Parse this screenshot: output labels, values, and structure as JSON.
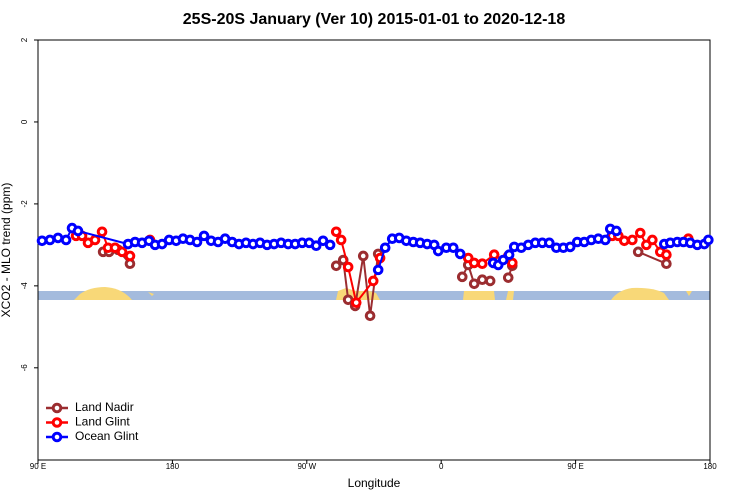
{
  "chart_data": {
    "type": "line",
    "title": "25S-20S January (Ver 10)   2015-01-01 to 2020-12-18",
    "xlabel": "Longitude",
    "ylabel": "XCO2 - MLO trend (ppm)",
    "xlim": [
      90,
      540
    ],
    "ylim": [
      -8.25,
      2
    ],
    "xticks": [
      {
        "value": 90,
        "label": "90 E"
      },
      180,
      {
        "value": 270,
        "label": "90 W"
      },
      {
        "value": 360,
        "label": "0"
      },
      {
        "value": 450,
        "label": "90 E"
      },
      {
        "value": 540,
        "label": "180"
      }
    ],
    "yticks": [
      2,
      0,
      -2,
      -4,
      -6
    ],
    "legend": "bottom-left",
    "series": [
      {
        "name": "Land Nadir",
        "color": "#9b2d30",
        "x": [
          133.6,
          137.6,
          143.6,
          151.6,
          null,
          289.7,
          294.4,
          297.7,
          302.4,
          307.8,
          312.4,
          317.8,
          null,
          374.1,
          378.1,
          382.1,
          387.5,
          392.8,
          null,
          404.9,
          407.6,
          null,
          491.9,
          510.8
        ],
        "values": [
          -3.17,
          -3.17,
          -3.12,
          -3.46,
          null,
          -3.51,
          -3.37,
          -4.34,
          -4.49,
          -3.27,
          -4.73,
          -3.22,
          null,
          -3.78,
          -3.49,
          -3.95,
          -3.85,
          -3.88,
          null,
          -3.8,
          -3.51,
          null,
          -3.17,
          -3.46
        ]
      },
      {
        "name": "Land Glint",
        "color": "#ff0000",
        "x": [
          115.5,
          119.5,
          123.5,
          128.2,
          132.9,
          136.9,
          141.6,
          146.3,
          151.6,
          null,
          165.0,
          null,
          289.7,
          293.0,
          297.7,
          303.1,
          314.5,
          319.1,
          null,
          378.1,
          382.1,
          387.5,
          395.5,
          null,
          404.9,
          407.6,
          null,
          474.6,
          478.6,
          482.6,
          488.0,
          493.3,
          497.4,
          501.4,
          506.7,
          510.8,
          null,
          525.5
        ],
        "values": [
          -2.78,
          -2.78,
          -2.95,
          -2.88,
          -2.68,
          -3.07,
          -3.07,
          -3.17,
          -3.27,
          null,
          -2.88,
          null,
          -2.68,
          -2.88,
          -3.54,
          -4.41,
          -3.88,
          -3.32,
          null,
          -3.32,
          -3.44,
          -3.46,
          -3.24,
          null,
          -3.27,
          -3.44,
          null,
          -2.78,
          -2.78,
          -2.9,
          -2.88,
          -2.71,
          -3.0,
          -2.88,
          -3.17,
          -3.24,
          null,
          -2.85
        ]
      },
      {
        "name": "Ocean Glint",
        "color": "#0000ff",
        "x": [
          92.7,
          98.0,
          103.4,
          108.8,
          112.8,
          116.8,
          150.3,
          155.0,
          159.7,
          164.3,
          168.4,
          173.1,
          177.8,
          182.5,
          187.1,
          191.8,
          196.5,
          201.2,
          205.9,
          210.6,
          215.3,
          220.0,
          224.6,
          229.3,
          234.0,
          238.7,
          243.4,
          248.1,
          252.8,
          257.5,
          262.2,
          266.9,
          271.6,
          276.3,
          280.9,
          285.6,
          null,
          317.8,
          322.5,
          327.2,
          331.9,
          336.6,
          341.3,
          345.9,
          350.6,
          355.3,
          358.0,
          363.4,
          368.1,
          372.7,
          null,
          394.8,
          398.2,
          401.5,
          405.5,
          408.9,
          413.6,
          418.3,
          423.0,
          427.7,
          432.4,
          437.1,
          441.8,
          446.4,
          451.1,
          455.8,
          460.5,
          465.2,
          469.9,
          473.2,
          477.3,
          null,
          509.4,
          513.4,
          518.1,
          522.2,
          526.8,
          531.5,
          536.2,
          538.9
        ],
        "values": [
          -2.9,
          -2.88,
          -2.83,
          -2.88,
          -2.59,
          -2.66,
          -2.98,
          -2.93,
          -2.95,
          -2.9,
          -3.0,
          -2.98,
          -2.88,
          -2.9,
          -2.85,
          -2.88,
          -2.93,
          -2.78,
          -2.9,
          -2.93,
          -2.85,
          -2.93,
          -2.98,
          -2.95,
          -2.98,
          -2.95,
          -3.0,
          -2.98,
          -2.95,
          -2.98,
          -2.98,
          -2.95,
          -2.95,
          -3.02,
          -2.9,
          -3.0,
          null,
          -3.61,
          -3.07,
          -2.85,
          -2.83,
          -2.9,
          -2.93,
          -2.95,
          -2.98,
          -3.0,
          -3.15,
          -3.07,
          -3.07,
          -3.22,
          null,
          -3.44,
          -3.49,
          -3.37,
          -3.24,
          -3.05,
          -3.07,
          -3.0,
          -2.95,
          -2.95,
          -2.95,
          -3.07,
          -3.07,
          -3.05,
          -2.93,
          -2.93,
          -2.88,
          -2.85,
          -2.88,
          -2.61,
          -2.66,
          null,
          -2.98,
          -2.95,
          -2.93,
          -2.93,
          -2.95,
          -3.0,
          -2.98,
          -2.88
        ]
      }
    ]
  }
}
